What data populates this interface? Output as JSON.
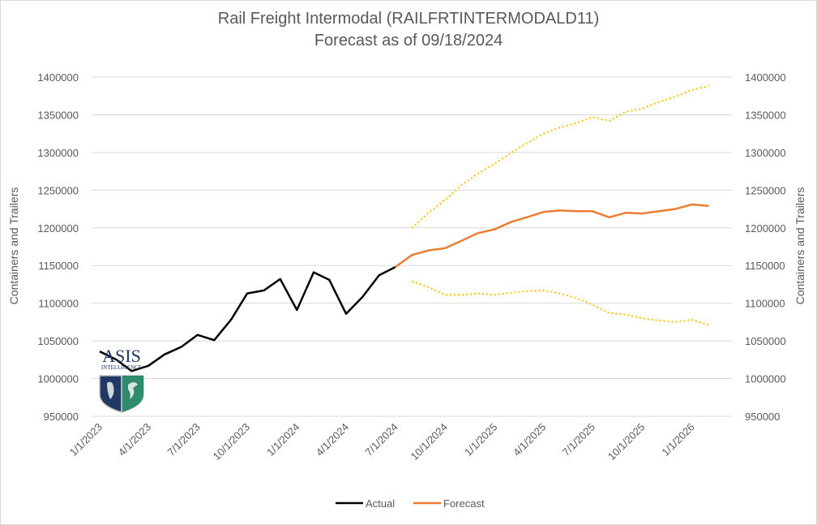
{
  "chart_data": {
    "type": "line",
    "title": "Rail Freight Intermodal (RAILFRTINTERMODALD11)",
    "subtitle": "Forecast as of 09/18/2024",
    "ylabel": "Containers and Trailers",
    "ylabel_right": "Containers and Trailers",
    "ylim": [
      950000,
      1400000
    ],
    "yticks": [
      "950000",
      "1000000",
      "1050000",
      "1100000",
      "1150000",
      "1200000",
      "1250000",
      "1300000",
      "1350000",
      "1400000"
    ],
    "xlim": [
      "2023-01-01",
      "2026-03-01"
    ],
    "xticks": [
      "1/1/2023",
      "4/1/2023",
      "7/1/2023",
      "10/1/2023",
      "1/1/2024",
      "4/1/2024",
      "7/1/2024",
      "10/1/2024",
      "1/1/2025",
      "4/1/2025",
      "7/1/2025",
      "10/1/2025",
      "1/1/2026"
    ],
    "grid": true,
    "legend_position": "bottom",
    "series": [
      {
        "name": "Actual",
        "color": "#000000",
        "style": "solid",
        "x": [
          "2023-01-01",
          "2023-02-01",
          "2023-03-01",
          "2023-04-01",
          "2023-05-01",
          "2023-06-01",
          "2023-07-01",
          "2023-08-01",
          "2023-09-01",
          "2023-10-01",
          "2023-11-01",
          "2023-12-01",
          "2024-01-01",
          "2024-02-01",
          "2024-03-01",
          "2024-04-01",
          "2024-05-01",
          "2024-06-01",
          "2024-07-01"
        ],
        "values": [
          1036000,
          1025000,
          1010000,
          1017000,
          1032000,
          1042000,
          1058000,
          1051000,
          1078000,
          1113000,
          1117000,
          1132000,
          1091000,
          1141000,
          1131000,
          1086000,
          1108000,
          1137000,
          1148000
        ]
      },
      {
        "name": "Forecast",
        "color": "#ed7d31",
        "style": "solid",
        "x": [
          "2024-07-01",
          "2024-08-01",
          "2024-09-01",
          "2024-10-01",
          "2024-11-01",
          "2024-12-01",
          "2025-01-01",
          "2025-02-01",
          "2025-03-01",
          "2025-04-01",
          "2025-05-01",
          "2025-06-01",
          "2025-07-01",
          "2025-08-01",
          "2025-09-01",
          "2025-10-01",
          "2025-11-01",
          "2025-12-01",
          "2026-01-01",
          "2026-02-01"
        ],
        "values": [
          1148000,
          1164000,
          1170000,
          1173000,
          1183000,
          1193000,
          1198000,
          1208000,
          1214000,
          1221000,
          1223000,
          1222000,
          1222000,
          1214000,
          1220000,
          1219000,
          1222000,
          1225000,
          1231000,
          1229000
        ]
      },
      {
        "color": "#ffc000",
        "style": "dotted",
        "x": [
          "2024-08-01",
          "2024-09-01",
          "2024-10-01",
          "2024-11-01",
          "2024-12-01",
          "2025-01-01",
          "2025-02-01",
          "2025-03-01",
          "2025-04-01",
          "2025-05-01",
          "2025-06-01",
          "2025-07-01",
          "2025-08-01",
          "2025-09-01",
          "2025-10-01",
          "2025-11-01",
          "2025-12-01",
          "2026-01-01",
          "2026-02-01"
        ],
        "values": [
          1200000,
          1220000,
          1237000,
          1257000,
          1272000,
          1285000,
          1300000,
          1312000,
          1325000,
          1333000,
          1339000,
          1347000,
          1342000,
          1354000,
          1358000,
          1367000,
          1374000,
          1383000,
          1388000
        ]
      },
      {
        "color": "#ffc000",
        "style": "dotted",
        "x": [
          "2024-08-01",
          "2024-09-01",
          "2024-10-01",
          "2024-11-01",
          "2024-12-01",
          "2025-01-01",
          "2025-02-01",
          "2025-03-01",
          "2025-04-01",
          "2025-05-01",
          "2025-06-01",
          "2025-07-01",
          "2025-08-01",
          "2025-09-01",
          "2025-10-01",
          "2025-11-01",
          "2025-12-01",
          "2026-01-01",
          "2026-02-01"
        ],
        "values": [
          1129000,
          1121000,
          1111000,
          1111000,
          1113000,
          1111000,
          1114000,
          1116000,
          1117000,
          1113000,
          1107000,
          1098000,
          1087000,
          1085000,
          1080000,
          1077000,
          1075000,
          1078000,
          1071000
        ]
      }
    ]
  },
  "logo": {
    "text": "ASIS",
    "subtext": "INTELLIGENCE"
  }
}
